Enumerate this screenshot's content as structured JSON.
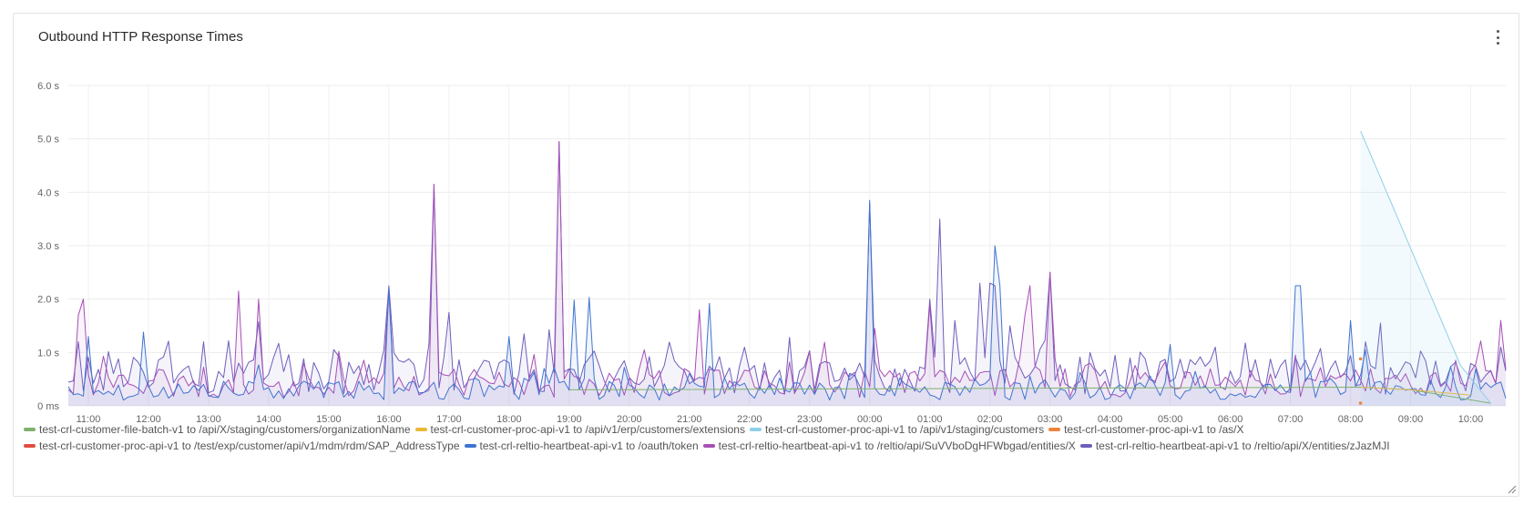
{
  "panel": {
    "title": "Outbound HTTP Response Times",
    "menu_icon": "more-vertical-icon"
  },
  "chart_data": {
    "type": "line",
    "title": "Outbound HTTP Response Times",
    "xlabel": "",
    "ylabel": "",
    "y_unit": "seconds",
    "ylim": [
      0,
      6
    ],
    "y_ticks": [
      {
        "value": 0,
        "label": "0 ms"
      },
      {
        "value": 1,
        "label": "1.0 s"
      },
      {
        "value": 2,
        "label": "2.0 s"
      },
      {
        "value": 3,
        "label": "3.0 s"
      },
      {
        "value": 4,
        "label": "4.0 s"
      },
      {
        "value": 5,
        "label": "5.0 s"
      },
      {
        "value": 6,
        "label": "6.0 s"
      }
    ],
    "xlim": [
      "10:40",
      "10:35"
    ],
    "x_ticks": [
      "11:00",
      "12:00",
      "13:00",
      "14:00",
      "15:00",
      "16:00",
      "17:00",
      "18:00",
      "19:00",
      "20:00",
      "21:00",
      "22:00",
      "23:00",
      "00:00",
      "01:00",
      "02:00",
      "03:00",
      "04:00",
      "05:00",
      "06:00",
      "07:00",
      "08:00",
      "09:00",
      "10:00"
    ],
    "grid": true,
    "legend_position": "bottom",
    "highlight_region": {
      "x_start": "08:10",
      "x_end": "10:35"
    },
    "series": [
      {
        "name": "test-crl-customer-file-batch-v1 to /api/X/staging/customers/organizationName",
        "color": "#7eb26d",
        "points": [
          [
            "19:00",
            0.3
          ],
          [
            "08:10",
            0.35
          ],
          [
            "09:00",
            0.3
          ],
          [
            "10:20",
            0.05
          ]
        ]
      },
      {
        "name": "test-crl-customer-proc-api-v1 to /api/v1/erp/customers/extensions",
        "color": "#eab839",
        "points": [
          [
            "08:10",
            0.35
          ],
          [
            "09:00",
            0.3
          ],
          [
            "10:00",
            0.2
          ]
        ]
      },
      {
        "name": "test-crl-customer-proc-api-v1 to /api/v1/staging/customers",
        "color": "#8ecfe8",
        "points": [
          [
            "08:10",
            5.15
          ],
          [
            "09:50",
            0.75
          ],
          [
            "10:20",
            0.05
          ]
        ]
      },
      {
        "name": "test-crl-customer-proc-api-v1 to /as/X",
        "color": "#ef843c",
        "points": [
          [
            "08:10",
            0.88
          ],
          [
            "08:10",
            0.05
          ]
        ]
      },
      {
        "name": "test-crl-customer-proc-api-v1 to /test/exp/customer/api/v1/mdm/rdm/SAP_AddressType",
        "color": "#e24d42",
        "points": []
      },
      {
        "name": "test-crl-reltio-heartbeat-api-v1 to /oauth/token",
        "color": "#3f74d0",
        "baseline": 0.3,
        "peaks": [
          [
            "11:00",
            1.3
          ],
          [
            "11:55",
            1.38
          ],
          [
            "16:02",
            2.2
          ],
          [
            "18:00",
            1.3
          ],
          [
            "19:05",
            1.98
          ],
          [
            "19:22",
            2.03
          ],
          [
            "21:20",
            1.92
          ],
          [
            "23:59",
            3.85
          ],
          [
            "02:05",
            3.0
          ],
          [
            "02:10",
            2.25
          ],
          [
            "05:00",
            1.15
          ],
          [
            "07:03",
            2.25
          ],
          [
            "07:12",
            2.25
          ],
          [
            "08:00",
            1.6
          ],
          [
            "08:15",
            1.05
          ]
        ]
      },
      {
        "name": "test-crl-reltio-heartbeat-api-v1 to /reltio/api/SuVVboDgHFWbgad/entities/X",
        "color": "#a64fb6",
        "baseline": 0.45,
        "peaks": [
          [
            "10:50",
            1.7
          ],
          [
            "10:55",
            2.0
          ],
          [
            "13:30",
            2.15
          ],
          [
            "13:50",
            2.0
          ],
          [
            "16:00",
            2.2
          ],
          [
            "16:47",
            4.15
          ],
          [
            "18:48",
            4.95
          ],
          [
            "20:13",
            1.05
          ],
          [
            "21:08",
            1.8
          ],
          [
            "00:04",
            1.45
          ],
          [
            "01:00",
            1.9
          ],
          [
            "02:33",
            1.7
          ],
          [
            "02:42",
            2.25
          ],
          [
            "03:00",
            2.5
          ],
          [
            "07:03",
            0.95
          ],
          [
            "10:32",
            1.6
          ]
        ]
      },
      {
        "name": "test-crl-reltio-heartbeat-api-v1 to /reltio/api/X/entities/zJazMJI",
        "color": "#6c5fbd",
        "baseline": 0.6,
        "peaks": [
          [
            "10:52",
            1.2
          ],
          [
            "12:55",
            1.2
          ],
          [
            "16:02",
            2.25
          ],
          [
            "16:47",
            4.15
          ],
          [
            "17:00",
            1.75
          ],
          [
            "18:48",
            4.95
          ],
          [
            "23:59",
            3.8
          ],
          [
            "01:00",
            2.0
          ],
          [
            "01:10",
            3.5
          ],
          [
            "01:25",
            1.6
          ],
          [
            "01:50",
            2.3
          ],
          [
            "02:00",
            2.3
          ],
          [
            "02:05",
            2.25
          ],
          [
            "02:20",
            1.5
          ],
          [
            "03:00",
            2.5
          ],
          [
            "05:45",
            1.1
          ],
          [
            "08:15",
            1.2
          ],
          [
            "10:30",
            1.1
          ]
        ]
      }
    ]
  },
  "legend": {
    "rows": [
      [
        0,
        1,
        2,
        3
      ],
      [
        4,
        5,
        6,
        7
      ]
    ]
  },
  "resize_icon": "resize-handle-icon"
}
